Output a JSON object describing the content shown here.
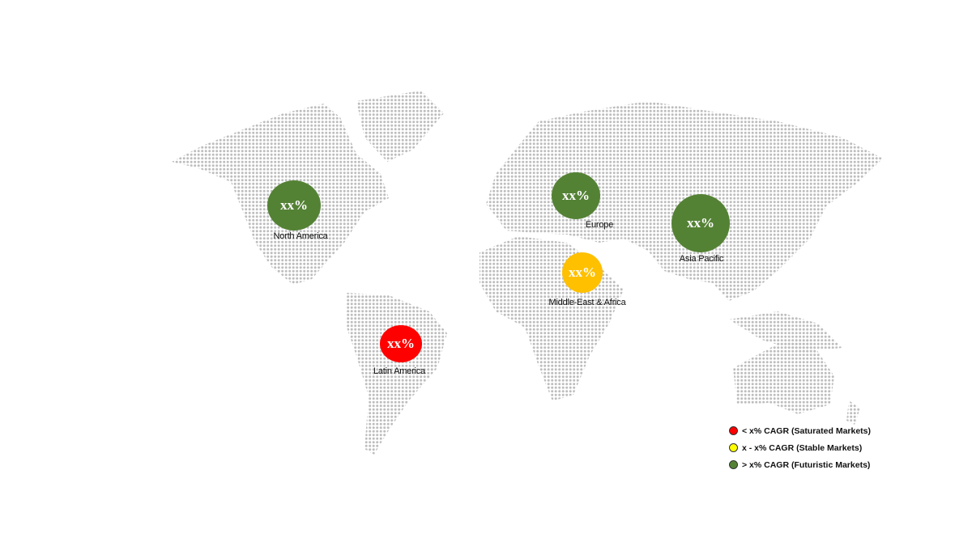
{
  "colors": {
    "high": "#548235",
    "mid": "#FFC000",
    "low": "#FF0000",
    "legend_mid": "#FFFF00",
    "map_dots": "#bdbdbd"
  },
  "regions": [
    {
      "name": "North America",
      "value": "xx%",
      "category": "high"
    },
    {
      "name": "Europe",
      "value": "xx%",
      "category": "high"
    },
    {
      "name": "Asia Pacific",
      "value": "xx%",
      "category": "high"
    },
    {
      "name": "Middle-East & Africa",
      "value": "xx%",
      "category": "mid"
    },
    {
      "name": "Latin America",
      "value": "xx%",
      "category": "low"
    }
  ],
  "legend": [
    {
      "label": "< x% CAGR (Saturated Markets)",
      "color": "#FF0000"
    },
    {
      "label": "x - x% CAGR (Stable Markets)",
      "color": "#FFFF00"
    },
    {
      "label": "> x% CAGR (Futuristic Markets)",
      "color": "#548235"
    }
  ]
}
